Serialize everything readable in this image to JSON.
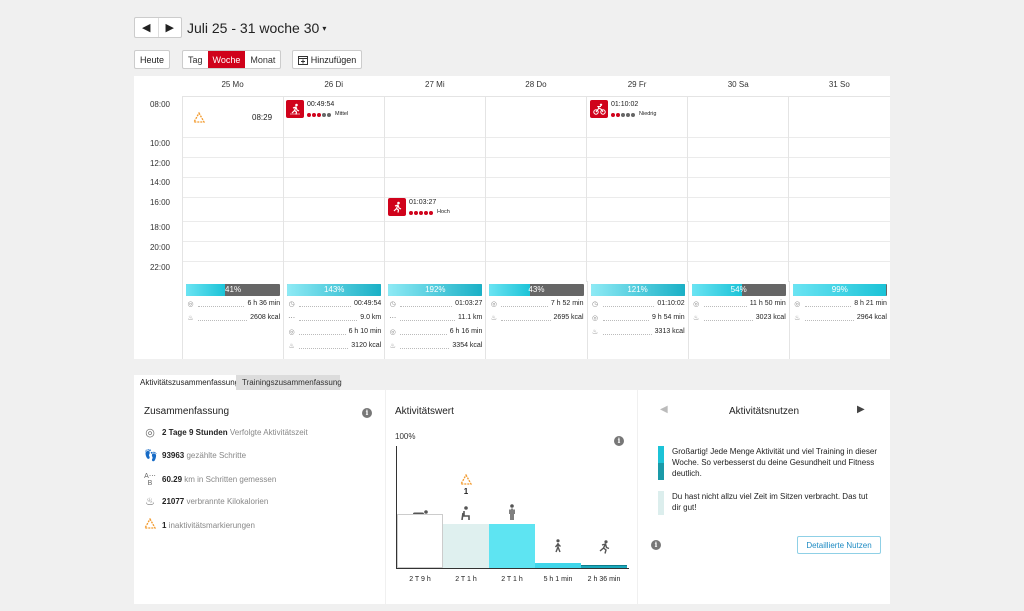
{
  "nav": {
    "prev_label": "◀",
    "next_label": "▶",
    "range_title": "Juli 25 - 31 woche 30",
    "caret": "▾"
  },
  "toolbar": {
    "today_label": "Heute",
    "views": [
      "Tag",
      "Woche",
      "Monat"
    ],
    "active_view": "Woche",
    "add_label": "Hinzufügen"
  },
  "calendar": {
    "days": [
      "25 Mo",
      "26 Di",
      "27 Mi",
      "28 Do",
      "29 Fr",
      "30 Sa",
      "31 So"
    ],
    "hours": [
      "08:00",
      "10:00",
      "12:00",
      "14:00",
      "16:00",
      "18:00",
      "20:00",
      "22:00"
    ],
    "inactivity_marker": {
      "time": "08:29"
    },
    "events": [
      {
        "day": "26 Di",
        "duration": "00:49:54",
        "intensity_dots": 3,
        "level": "Mittel",
        "sport": "running"
      },
      {
        "day": "27 Mi",
        "duration": "01:03:27",
        "intensity_dots": 5,
        "level": "Hoch",
        "sport": "running"
      },
      {
        "day": "29 Fr",
        "duration": "01:10:02",
        "intensity_dots": 2,
        "level": "Niedrig",
        "sport": "cycling"
      }
    ],
    "daily": [
      {
        "percent_label": "41%",
        "percent": 41,
        "stats": [
          {
            "icon": "activity-time",
            "value": "6 h 36 min"
          },
          {
            "icon": "calories",
            "value": "2608 kcal"
          }
        ]
      },
      {
        "percent_label": "143%",
        "percent": 143,
        "stats": [
          {
            "icon": "training-time",
            "value": "00:49:54"
          },
          {
            "icon": "distance",
            "value": "9.0 km"
          },
          {
            "icon": "activity-time",
            "value": "6 h 10 min"
          },
          {
            "icon": "calories",
            "value": "3120 kcal"
          }
        ]
      },
      {
        "percent_label": "192%",
        "percent": 192,
        "stats": [
          {
            "icon": "training-time",
            "value": "01:03:27"
          },
          {
            "icon": "distance",
            "value": "11.1 km"
          },
          {
            "icon": "activity-time",
            "value": "6 h 16 min"
          },
          {
            "icon": "calories",
            "value": "3354 kcal"
          }
        ]
      },
      {
        "percent_label": "43%",
        "percent": 43,
        "stats": [
          {
            "icon": "activity-time",
            "value": "7 h 52 min"
          },
          {
            "icon": "calories",
            "value": "2695 kcal"
          }
        ]
      },
      {
        "percent_label": "121%",
        "percent": 121,
        "stats": [
          {
            "icon": "training-time",
            "value": "01:10:02"
          },
          {
            "icon": "activity-time",
            "value": "9 h 54 min"
          },
          {
            "icon": "calories",
            "value": "3313 kcal"
          }
        ]
      },
      {
        "percent_label": "54%",
        "percent": 54,
        "stats": [
          {
            "icon": "activity-time",
            "value": "11 h 50 min"
          },
          {
            "icon": "calories",
            "value": "3023 kcal"
          }
        ]
      },
      {
        "percent_label": "99%",
        "percent": 99,
        "stats": [
          {
            "icon": "activity-time",
            "value": "8 h 21 min"
          },
          {
            "icon": "calories",
            "value": "2964 kcal"
          }
        ]
      }
    ]
  },
  "tabs": [
    "Aktivitätszusammenfassung",
    "Trainingszusammenfassung"
  ],
  "summary": {
    "title": "Zusammenfassung",
    "rows": [
      {
        "icon": "activity-time-icon",
        "value": "2 Tage 9 Stunden",
        "label": "Verfolgte Aktivitätszeit"
      },
      {
        "icon": "steps-icon",
        "value": "93963",
        "label": "gezählte Schritte"
      },
      {
        "icon": "distance-icon",
        "value": "60.29",
        "label": "km in Schritten gemessen"
      },
      {
        "icon": "calories-icon",
        "value": "21077",
        "label": "verbrannte Kilokalorien"
      },
      {
        "icon": "inactivity-icon",
        "value": "1",
        "label": "inaktivitätsmarkierungen"
      }
    ]
  },
  "activity_value": {
    "title": "Aktivitätswert",
    "top_label": "100%",
    "inactivity_count": "1",
    "bars": [
      {
        "label": "2 T 9 h",
        "level": "resting",
        "fraction": 0.44,
        "color": "#ffffff"
      },
      {
        "label": "2 T 1 h",
        "level": "sitting",
        "fraction": 0.36,
        "color": "#dff0ef"
      },
      {
        "label": "2 T 1 h",
        "level": "standing",
        "fraction": 0.36,
        "color": "#5ee4f2"
      },
      {
        "label": "5 h 1 min",
        "level": "walking",
        "fraction": 0.04,
        "color": "#3fd6ea"
      },
      {
        "label": "2 h 36 min",
        "level": "running",
        "fraction": 0.025,
        "color": "#1aa9bd"
      }
    ]
  },
  "benefit": {
    "title": "Aktivitätsnutzen",
    "messages": [
      {
        "text": "Großartig! Jede Menge Aktivität und viel Training in dieser Woche. So verbesserst du deine Gesundheit und Fitness deutlich.",
        "colors": [
          "#1cc3d7",
          "#1a9aa8"
        ]
      },
      {
        "text": "Du hast nicht allzu viel Zeit im Sitzen verbracht. Das tut dir gut!",
        "colors": [
          "#dceeed"
        ]
      }
    ],
    "detail_button": "Detaillierte Nutzen"
  },
  "colors": {
    "accent": "#d0021b",
    "cyan": "#1cc3d7",
    "link": "#1e8bc3"
  }
}
